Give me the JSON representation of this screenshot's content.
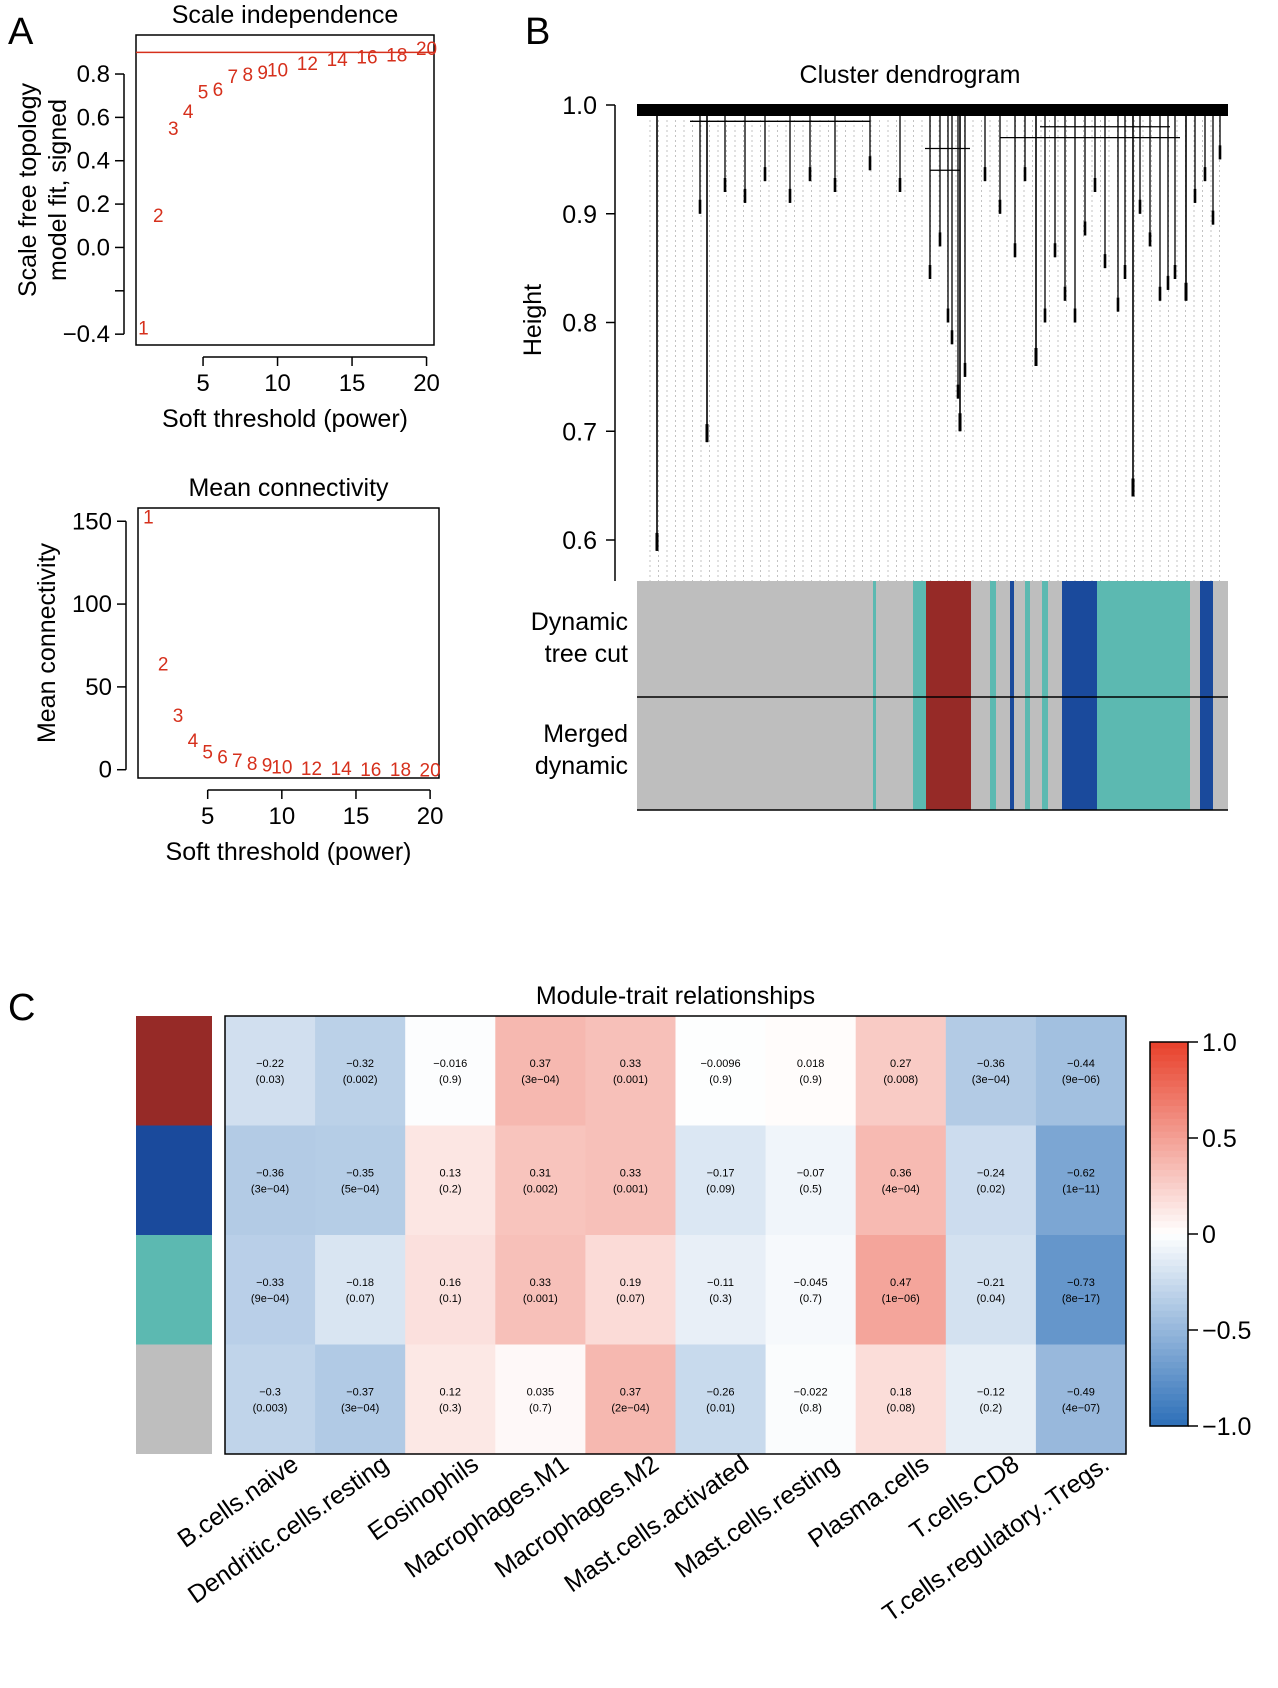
{
  "panels": {
    "A": "A",
    "B": "B",
    "C": "C"
  },
  "chart_data": [
    {
      "id": "scale_independence",
      "type": "scatter",
      "title": "Scale independence",
      "xlabel": "Soft threshold (power)",
      "ylabel": [
        "Scale free topology",
        "model fit, signed"
      ],
      "xlim": [
        0.5,
        20.5
      ],
      "ylim": [
        -0.45,
        0.98
      ],
      "xticks": [
        5,
        10,
        15,
        20
      ],
      "yticks": [
        -0.4,
        0.0,
        0.2,
        0.4,
        0.6,
        0.8
      ],
      "ytick_labels": [
        "−0.4",
        "0.0",
        "0.2",
        "0.4",
        "0.6",
        "0.8"
      ],
      "hline": 0.9,
      "points": {
        "x": [
          1,
          2,
          3,
          4,
          5,
          6,
          7,
          8,
          9,
          10,
          12,
          14,
          16,
          18,
          20
        ],
        "y": [
          -0.37,
          0.15,
          0.55,
          0.63,
          0.72,
          0.73,
          0.79,
          0.8,
          0.81,
          0.82,
          0.85,
          0.87,
          0.88,
          0.89,
          0.92
        ],
        "labels": [
          "1",
          "2",
          "3",
          "4",
          "5",
          "6",
          "7",
          "8",
          "9",
          "10",
          "12",
          "14",
          "16",
          "18",
          "20"
        ]
      },
      "point_color": "#d6301c"
    },
    {
      "id": "mean_connectivity",
      "type": "scatter",
      "title": "Mean connectivity",
      "xlabel": "Soft threshold (power)",
      "ylabel": [
        "Mean connectivity"
      ],
      "xlim": [
        0.3,
        20.6
      ],
      "ylim": [
        -5,
        158
      ],
      "xticks": [
        5,
        10,
        15,
        20
      ],
      "yticks": [
        0,
        50,
        100,
        150
      ],
      "ytick_labels": [
        "0",
        "50",
        "100",
        "150"
      ],
      "points": {
        "x": [
          1,
          2,
          3,
          4,
          5,
          6,
          7,
          8,
          9,
          10,
          12,
          14,
          16,
          18,
          20
        ],
        "y": [
          153,
          64,
          33,
          18,
          11,
          8,
          6,
          4,
          3,
          2,
          1,
          1,
          0.5,
          0.5,
          0
        ],
        "labels": [
          "1",
          "2",
          "3",
          "4",
          "5",
          "6",
          "7",
          "8",
          "9",
          "10",
          "12",
          "14",
          "16",
          "18",
          "20"
        ]
      },
      "point_color": "#d6301c"
    },
    {
      "id": "cluster_dendrogram",
      "type": "dendrogram",
      "title": "Cluster dendrogram",
      "ylabel": "Height",
      "ylim": [
        0.56,
        1.0
      ],
      "yticks": [
        0.6,
        0.7,
        0.8,
        0.9,
        1.0
      ],
      "ytick_labels": [
        "0.6",
        "0.7",
        "0.8",
        "0.9",
        "1.0"
      ],
      "color_rows": [
        {
          "label": [
            "Dynamic",
            "tree cut"
          ]
        },
        {
          "label": [
            "Merged",
            "dynamic"
          ]
        }
      ],
      "module_colors": {
        "grey": "#bebebe",
        "brown": "#962a27",
        "blue": "#1a4a9c",
        "turquoise": "#5cb9b1"
      }
    },
    {
      "id": "module_trait",
      "type": "heatmap",
      "title": "Module-trait relationships",
      "columns": [
        "B.cells.naive",
        "Dendritic.cells.resting",
        "Eosinophils",
        "Macrophages.M1",
        "Macrophages.M2",
        "Mast.cells.activated",
        "Mast.cells.resting",
        "Plasma.cells",
        "T.cells.CD8",
        "T.cells.regulatory..Tregs."
      ],
      "row_colors": [
        "#962a27",
        "#1a4a9c",
        "#5cb9b1",
        "#bebebe"
      ],
      "values": [
        [
          -0.22,
          -0.32,
          -0.016,
          0.37,
          0.33,
          -0.0096,
          0.018,
          0.27,
          -0.36,
          -0.44
        ],
        [
          -0.36,
          -0.35,
          0.13,
          0.31,
          0.33,
          -0.17,
          -0.07,
          0.36,
          -0.24,
          -0.62
        ],
        [
          -0.33,
          -0.18,
          0.16,
          0.33,
          0.19,
          -0.11,
          -0.045,
          0.47,
          -0.21,
          -0.73
        ],
        [
          -0.3,
          -0.37,
          0.12,
          0.035,
          0.37,
          -0.26,
          -0.022,
          0.18,
          -0.12,
          -0.49
        ]
      ],
      "value_labels": [
        [
          "−0.22",
          "−0.32",
          "−0.016",
          "0.37",
          "0.33",
          "−0.0096",
          "0.018",
          "0.27",
          "−0.36",
          "−0.44"
        ],
        [
          "−0.36",
          "−0.35",
          "0.13",
          "0.31",
          "0.33",
          "−0.17",
          "−0.07",
          "0.36",
          "−0.24",
          "−0.62"
        ],
        [
          "−0.33",
          "−0.18",
          "0.16",
          "0.33",
          "0.19",
          "−0.11",
          "−0.045",
          "0.47",
          "−0.21",
          "−0.73"
        ],
        [
          "−0.3",
          "−0.37",
          "0.12",
          "0.035",
          "0.37",
          "−0.26",
          "−0.022",
          "0.18",
          "−0.12",
          "−0.49"
        ]
      ],
      "pvalues": [
        [
          "(0.03)",
          "(0.002)",
          "(0.9)",
          "(3e−04)",
          "(0.001)",
          "(0.9)",
          "(0.9)",
          "(0.008)",
          "(3e−04)",
          "(9e−06)"
        ],
        [
          "(3e−04)",
          "(5e−04)",
          "(0.2)",
          "(0.002)",
          "(0.001)",
          "(0.09)",
          "(0.5)",
          "(4e−04)",
          "(0.02)",
          "(1e−11)"
        ],
        [
          "(9e−04)",
          "(0.07)",
          "(0.1)",
          "(0.001)",
          "(0.07)",
          "(0.3)",
          "(0.7)",
          "(1e−06)",
          "(0.04)",
          "(8e−17)"
        ],
        [
          "(0.003)",
          "(3e−04)",
          "(0.3)",
          "(0.7)",
          "(2e−04)",
          "(0.01)",
          "(0.8)",
          "(0.08)",
          "(0.2)",
          "(4e−07)"
        ]
      ],
      "colorbar": {
        "range": [
          -1,
          1
        ],
        "ticks": [
          1.0,
          0.5,
          0,
          -0.5,
          -1.0
        ],
        "tick_labels": [
          "1.0",
          "0.5",
          "0",
          "−0.5",
          "−1.0"
        ],
        "low_color": "#2c6fb8",
        "mid_color": "#ffffff",
        "high_color": "#e8402a"
      }
    }
  ]
}
